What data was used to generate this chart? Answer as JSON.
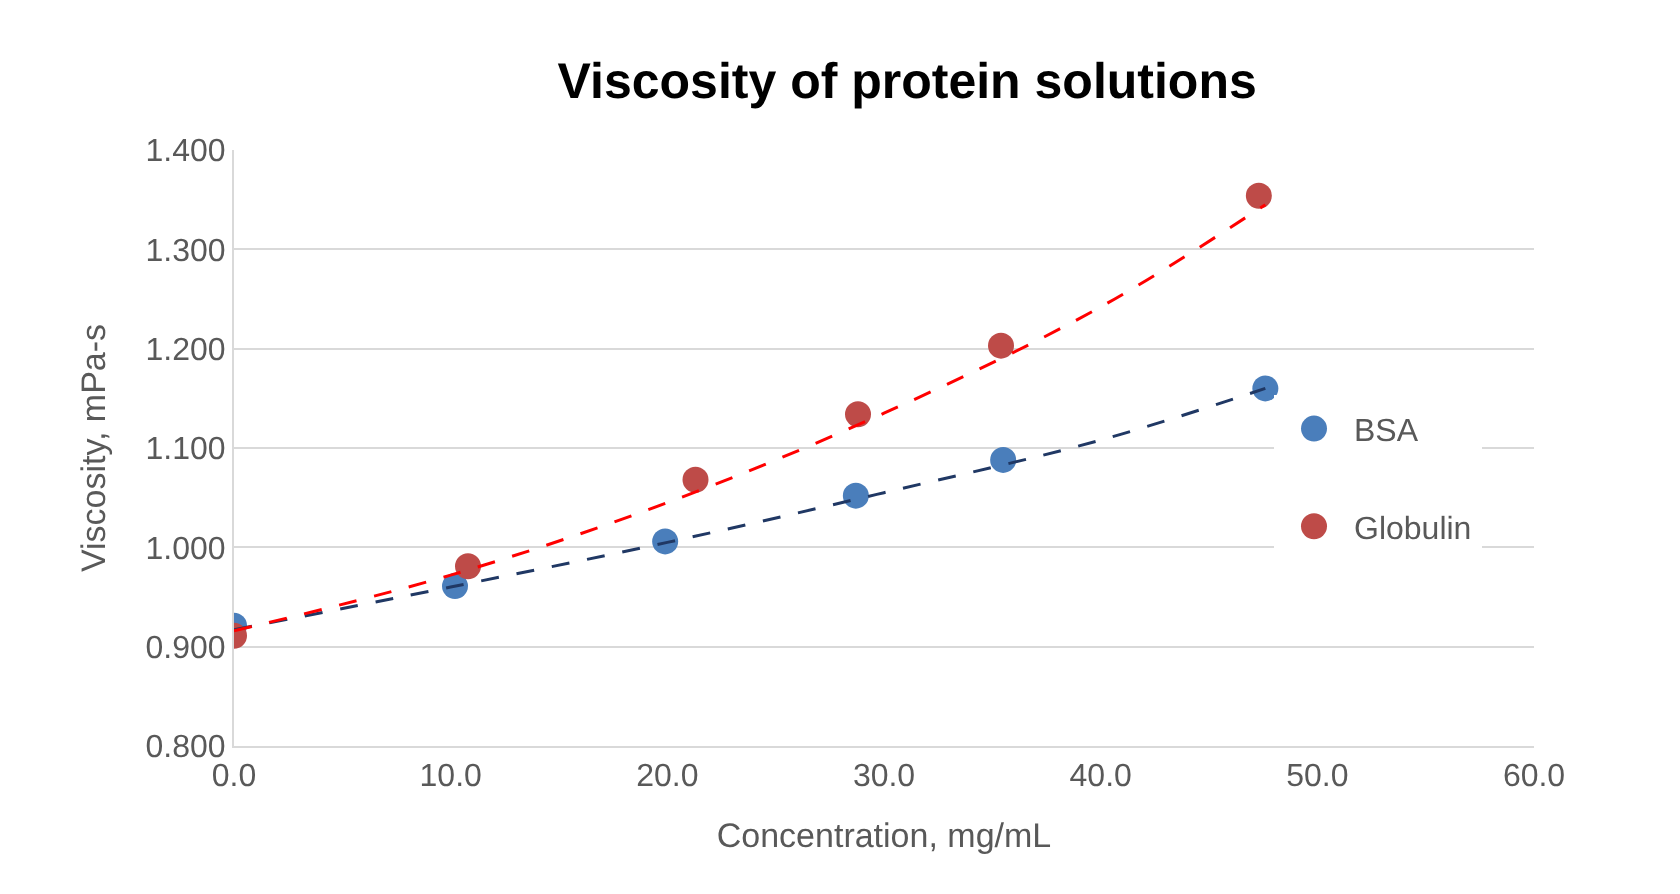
{
  "chart_data": {
    "type": "scatter",
    "title": "Viscosity of protein solutions",
    "xlabel": "Concentration, mg/mL",
    "ylabel": "Viscosity, mPa-s",
    "series": [
      {
        "name": "BSA",
        "color": "#4a7ebb",
        "x": [
          0,
          10.2,
          19.9,
          28.7,
          35.5,
          47.6
        ],
        "values": [
          0.921,
          0.961,
          1.006,
          1.052,
          1.088,
          1.16
        ]
      },
      {
        "name": "Globulin",
        "color": "#be4b48",
        "x": [
          0,
          10.8,
          21.3,
          28.8,
          35.4,
          47.3
        ],
        "values": [
          0.911,
          0.981,
          1.068,
          1.134,
          1.203,
          1.354
        ]
      },
      {
        "type": "line",
        "line_style": "dashed",
        "marker": "none",
        "color": "#203864",
        "x": [
          0,
          10,
          20,
          30,
          40,
          47.6
        ],
        "values": [
          0.917,
          0.96,
          1.005,
          1.055,
          1.108,
          1.16
        ]
      },
      {
        "type": "line",
        "line_style": "dashed",
        "marker": "none",
        "color": "#ff0000",
        "x": [
          0,
          10,
          20,
          30,
          40,
          47.6
        ],
        "values": [
          0.916,
          0.972,
          1.045,
          1.135,
          1.242,
          1.345
        ]
      }
    ],
    "xlim": [
      0,
      60
    ],
    "xticks": [
      {
        "value": 0,
        "label": "0.0"
      },
      {
        "value": 10,
        "label": "10.0"
      },
      {
        "value": 20,
        "label": "20.0"
      },
      {
        "value": 30,
        "label": "30.0"
      },
      {
        "value": 40,
        "label": "40.0"
      },
      {
        "value": 50,
        "label": "50.0"
      },
      {
        "value": 60,
        "label": "60.0"
      }
    ],
    "ylim": [
      0.8,
      1.4
    ],
    "yticks": [
      {
        "value": 0.8,
        "label": "0.800"
      },
      {
        "value": 0.9,
        "label": "0.900"
      },
      {
        "value": 1.0,
        "label": "1.000"
      },
      {
        "value": 1.1,
        "label": "1.100"
      },
      {
        "value": 1.2,
        "label": "1.200"
      },
      {
        "value": 1.3,
        "label": "1.300"
      },
      {
        "value": 1.4,
        "label": "1.400"
      }
    ],
    "grid": "y",
    "legend": "right",
    "marker": "circle"
  }
}
